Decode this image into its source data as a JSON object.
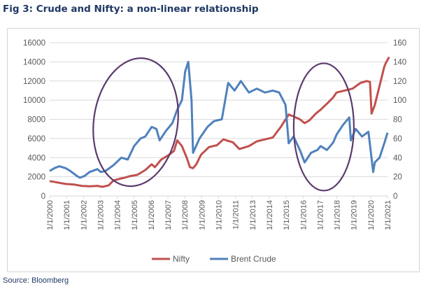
{
  "title": "Fig 3: Crude and Nifty: a non-linear relationship",
  "source": "Source: Bloomberg",
  "colors": {
    "nifty": "#c0504d",
    "brent": "#4f81bd",
    "ellipse": "#5b3a6e",
    "grid": "#d9d9d9",
    "text": "#595959"
  },
  "chart_data": {
    "type": "line",
    "title": "",
    "xlabel": "",
    "ylabel_left": "",
    "ylabel_right": "",
    "ylim_left": [
      0,
      16000
    ],
    "ylim_right": [
      0,
      160
    ],
    "yticks_left": [
      "0",
      "2000",
      "4000",
      "6000",
      "8000",
      "10000",
      "12000",
      "14000",
      "16000"
    ],
    "yticks_right": [
      "0",
      "20",
      "40",
      "60",
      "80",
      "100",
      "120",
      "140",
      "160"
    ],
    "xticks": [
      "1/1/2000",
      "1/1/2001",
      "1/1/2002",
      "1/1/2003",
      "1/1/2004",
      "1/1/2005",
      "1/1/2006",
      "1/1/2007",
      "1/1/2008",
      "1/1/2009",
      "1/1/2010",
      "1/1/2011",
      "1/1/2013",
      "1/1/2014",
      "1/1/2015",
      "1/1/2016",
      "1/1/2017",
      "1/1/2018",
      "1/1/2019",
      "1/1/2020",
      "1/1/2021"
    ],
    "grid": true,
    "legend": "bottom",
    "series": [
      {
        "name": "Nifty",
        "axis": "left",
        "x": [
          2000.0,
          2000.5,
          2001.0,
          2001.5,
          2002.0,
          2002.5,
          2003.0,
          2003.3,
          2003.7,
          2004.0,
          2004.4,
          2004.7,
          2005.0,
          2005.5,
          2006.0,
          2006.4,
          2006.6,
          2007.0,
          2007.5,
          2007.8,
          2008.0,
          2008.3,
          2008.6,
          2008.8,
          2009.0,
          2009.2,
          2009.5,
          2010.0,
          2010.5,
          2010.9,
          2011.5,
          2011.9,
          2012.5,
          2013.0,
          2013.5,
          2014.0,
          2014.5,
          2015.0,
          2015.3,
          2015.7,
          2016.0,
          2016.3,
          2016.7,
          2017.0,
          2017.5,
          2017.8,
          2018.0,
          2018.5,
          2019.0,
          2019.5,
          2019.9,
          2020.1,
          2020.2,
          2020.4,
          2020.7,
          2021.0,
          2021.1,
          2021.3
        ],
        "values": [
          1550,
          1400,
          1250,
          1200,
          1050,
          1000,
          1050,
          950,
          1100,
          1600,
          1800,
          1900,
          2050,
          2200,
          2700,
          3300,
          3000,
          3800,
          4300,
          4700,
          5800,
          5200,
          4000,
          3000,
          2900,
          3300,
          4300,
          5100,
          5300,
          5900,
          5600,
          4900,
          5200,
          5700,
          5900,
          6100,
          7200,
          8500,
          8300,
          8000,
          7600,
          7900,
          8600,
          9000,
          9800,
          10300,
          10800,
          11000,
          11200,
          11800,
          12000,
          11900,
          8600,
          9500,
          11500,
          13500,
          13900,
          14500
        ]
      },
      {
        "name": "Brent Crude",
        "axis": "right",
        "x": [
          2000.0,
          2000.3,
          2000.6,
          2001.0,
          2001.3,
          2001.7,
          2001.9,
          2002.2,
          2002.5,
          2003.0,
          2003.2,
          2003.5,
          2004.0,
          2004.5,
          2004.9,
          2005.3,
          2005.7,
          2006.0,
          2006.4,
          2006.7,
          2006.9,
          2007.3,
          2007.7,
          2008.0,
          2008.3,
          2008.5,
          2008.7,
          2008.9,
          2009.0,
          2009.4,
          2009.9,
          2010.3,
          2010.8,
          2011.2,
          2011.6,
          2012.0,
          2012.5,
          2013.0,
          2013.5,
          2014.0,
          2014.4,
          2014.8,
          2015.0,
          2015.3,
          2015.7,
          2016.0,
          2016.4,
          2016.8,
          2017.0,
          2017.4,
          2017.8,
          2018.0,
          2018.4,
          2018.8,
          2018.9,
          2019.2,
          2019.6,
          2020.0,
          2020.3,
          2020.4,
          2020.7,
          2021.0,
          2021.2
        ],
        "values": [
          26,
          29,
          31,
          29,
          26,
          21,
          19,
          21,
          25,
          28,
          25,
          26,
          32,
          40,
          38,
          52,
          60,
          62,
          72,
          70,
          58,
          68,
          76,
          90,
          100,
          130,
          140,
          100,
          45,
          60,
          72,
          78,
          80,
          118,
          110,
          120,
          108,
          112,
          108,
          110,
          108,
          95,
          55,
          62,
          48,
          35,
          45,
          48,
          52,
          48,
          56,
          64,
          74,
          82,
          58,
          70,
          62,
          67,
          25,
          35,
          40,
          55,
          66
        ]
      }
    ]
  },
  "annotations": {
    "ellipses": [
      {
        "center_year": 2005.4,
        "center_value": 7700
      },
      {
        "center_year": 2017.2,
        "center_value": 7200
      }
    ]
  }
}
